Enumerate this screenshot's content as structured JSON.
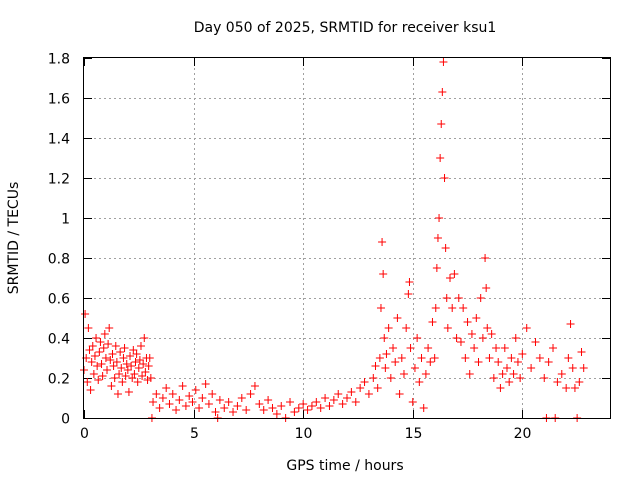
{
  "chart_data": {
    "type": "scatter",
    "title": "Day 050 of 2025, SRMTID for receiver ksu1",
    "xlabel": "GPS time / hours",
    "ylabel": "SRMTID / TECUs",
    "xlim": [
      0,
      24
    ],
    "ylim": [
      0,
      1.8
    ],
    "grid": true,
    "marker": "plus",
    "color": "#ff0000",
    "x_ticks": [
      0,
      5,
      10,
      15,
      20
    ],
    "x_tick_labels": [
      "0",
      "5",
      "10",
      "15",
      "20"
    ],
    "y_ticks": [
      0,
      0.2,
      0.4,
      0.6,
      0.8,
      1.0,
      1.2,
      1.4,
      1.6,
      1.8
    ],
    "y_tick_labels": [
      "0",
      "0.2",
      "0.4",
      "0.6",
      "0.8",
      "1",
      "1.2",
      "1.4",
      "1.6",
      "1.8"
    ],
    "series": [
      {
        "name": "ksu1",
        "points": [
          [
            0.0,
            0.24
          ],
          [
            0.05,
            0.52
          ],
          [
            0.1,
            0.3
          ],
          [
            0.15,
            0.18
          ],
          [
            0.2,
            0.45
          ],
          [
            0.25,
            0.34
          ],
          [
            0.3,
            0.14
          ],
          [
            0.35,
            0.28
          ],
          [
            0.4,
            0.36
          ],
          [
            0.45,
            0.22
          ],
          [
            0.5,
            0.31
          ],
          [
            0.55,
            0.4
          ],
          [
            0.6,
            0.26
          ],
          [
            0.65,
            0.19
          ],
          [
            0.7,
            0.33
          ],
          [
            0.75,
            0.38
          ],
          [
            0.8,
            0.27
          ],
          [
            0.85,
            0.21
          ],
          [
            0.9,
            0.35
          ],
          [
            0.95,
            0.42
          ],
          [
            1.0,
            0.3
          ],
          [
            1.05,
            0.24
          ],
          [
            1.1,
            0.37
          ],
          [
            1.15,
            0.45
          ],
          [
            1.2,
            0.29
          ],
          [
            1.25,
            0.16
          ],
          [
            1.3,
            0.32
          ],
          [
            1.35,
            0.26
          ],
          [
            1.4,
            0.2
          ],
          [
            1.45,
            0.36
          ],
          [
            1.5,
            0.28
          ],
          [
            1.55,
            0.12
          ],
          [
            1.6,
            0.22
          ],
          [
            1.65,
            0.33
          ],
          [
            1.7,
            0.25
          ],
          [
            1.75,
            0.18
          ],
          [
            1.8,
            0.3
          ],
          [
            1.85,
            0.35
          ],
          [
            1.9,
            0.21
          ],
          [
            1.95,
            0.27
          ],
          [
            2.0,
            0.24
          ],
          [
            2.05,
            0.13
          ],
          [
            2.1,
            0.31
          ],
          [
            2.15,
            0.26
          ],
          [
            2.2,
            0.2
          ],
          [
            2.25,
            0.34
          ],
          [
            2.3,
            0.22
          ],
          [
            2.35,
            0.28
          ],
          [
            2.4,
            0.32
          ],
          [
            2.45,
            0.18
          ],
          [
            2.5,
            0.25
          ],
          [
            2.55,
            0.29
          ],
          [
            2.6,
            0.36
          ],
          [
            2.65,
            0.21
          ],
          [
            2.7,
            0.27
          ],
          [
            2.75,
            0.4
          ],
          [
            2.8,
            0.23
          ],
          [
            2.85,
            0.3
          ],
          [
            2.9,
            0.19
          ],
          [
            2.95,
            0.26
          ],
          [
            3.0,
            0.3
          ],
          [
            3.05,
            0.2
          ],
          [
            3.1,
            0.0
          ],
          [
            3.15,
            0.08
          ],
          [
            3.3,
            0.12
          ],
          [
            3.45,
            0.05
          ],
          [
            3.6,
            0.1
          ],
          [
            3.75,
            0.15
          ],
          [
            3.9,
            0.07
          ],
          [
            4.05,
            0.12
          ],
          [
            4.2,
            0.04
          ],
          [
            4.35,
            0.09
          ],
          [
            4.5,
            0.16
          ],
          [
            4.65,
            0.06
          ],
          [
            4.8,
            0.11
          ],
          [
            4.95,
            0.08
          ],
          [
            5.1,
            0.14
          ],
          [
            5.25,
            0.05
          ],
          [
            5.4,
            0.1
          ],
          [
            5.55,
            0.17
          ],
          [
            5.7,
            0.07
          ],
          [
            5.85,
            0.12
          ],
          [
            6.0,
            0.03
          ],
          [
            6.1,
            0.0
          ],
          [
            6.2,
            0.09
          ],
          [
            6.4,
            0.05
          ],
          [
            6.6,
            0.08
          ],
          [
            6.8,
            0.03
          ],
          [
            7.0,
            0.06
          ],
          [
            7.2,
            0.1
          ],
          [
            7.4,
            0.04
          ],
          [
            7.6,
            0.12
          ],
          [
            7.8,
            0.16
          ],
          [
            8.0,
            0.07
          ],
          [
            8.2,
            0.04
          ],
          [
            8.4,
            0.09
          ],
          [
            8.6,
            0.05
          ],
          [
            8.8,
            0.02
          ],
          [
            9.0,
            0.06
          ],
          [
            9.2,
            0.0
          ],
          [
            9.4,
            0.08
          ],
          [
            9.6,
            0.03
          ],
          [
            9.8,
            0.05
          ],
          [
            10.0,
            0.07
          ],
          [
            10.2,
            0.04
          ],
          [
            10.4,
            0.06
          ],
          [
            10.6,
            0.08
          ],
          [
            10.8,
            0.05
          ],
          [
            11.0,
            0.1
          ],
          [
            11.2,
            0.06
          ],
          [
            11.4,
            0.09
          ],
          [
            11.6,
            0.12
          ],
          [
            11.8,
            0.07
          ],
          [
            12.0,
            0.1
          ],
          [
            12.2,
            0.13
          ],
          [
            12.4,
            0.08
          ],
          [
            12.6,
            0.15
          ],
          [
            12.8,
            0.18
          ],
          [
            13.0,
            0.12
          ],
          [
            13.2,
            0.2
          ],
          [
            13.3,
            0.26
          ],
          [
            13.4,
            0.15
          ],
          [
            13.5,
            0.3
          ],
          [
            13.55,
            0.55
          ],
          [
            13.6,
            0.88
          ],
          [
            13.65,
            0.72
          ],
          [
            13.7,
            0.4
          ],
          [
            13.75,
            0.25
          ],
          [
            13.8,
            0.32
          ],
          [
            13.9,
            0.45
          ],
          [
            14.0,
            0.2
          ],
          [
            14.1,
            0.35
          ],
          [
            14.2,
            0.28
          ],
          [
            14.3,
            0.5
          ],
          [
            14.4,
            0.12
          ],
          [
            14.5,
            0.3
          ],
          [
            14.6,
            0.22
          ],
          [
            14.7,
            0.45
          ],
          [
            14.8,
            0.62
          ],
          [
            14.85,
            0.68
          ],
          [
            14.9,
            0.35
          ],
          [
            15.0,
            0.08
          ],
          [
            15.1,
            0.25
          ],
          [
            15.2,
            0.4
          ],
          [
            15.3,
            0.18
          ],
          [
            15.4,
            0.3
          ],
          [
            15.5,
            0.05
          ],
          [
            15.6,
            0.22
          ],
          [
            15.7,
            0.35
          ],
          [
            15.8,
            0.28
          ],
          [
            15.9,
            0.48
          ],
          [
            16.0,
            0.3
          ],
          [
            16.05,
            0.55
          ],
          [
            16.1,
            0.75
          ],
          [
            16.15,
            0.9
          ],
          [
            16.2,
            1.0
          ],
          [
            16.25,
            1.3
          ],
          [
            16.3,
            1.47
          ],
          [
            16.35,
            1.63
          ],
          [
            16.4,
            1.78
          ],
          [
            16.45,
            1.2
          ],
          [
            16.5,
            0.85
          ],
          [
            16.55,
            0.6
          ],
          [
            16.6,
            0.45
          ],
          [
            16.7,
            0.7
          ],
          [
            16.8,
            0.55
          ],
          [
            16.9,
            0.72
          ],
          [
            17.0,
            0.4
          ],
          [
            17.1,
            0.6
          ],
          [
            17.2,
            0.38
          ],
          [
            17.3,
            0.55
          ],
          [
            17.4,
            0.3
          ],
          [
            17.5,
            0.48
          ],
          [
            17.6,
            0.22
          ],
          [
            17.7,
            0.42
          ],
          [
            17.8,
            0.35
          ],
          [
            17.9,
            0.5
          ],
          [
            18.0,
            0.28
          ],
          [
            18.1,
            0.6
          ],
          [
            18.2,
            0.4
          ],
          [
            18.3,
            0.8
          ],
          [
            18.35,
            0.65
          ],
          [
            18.4,
            0.45
          ],
          [
            18.5,
            0.3
          ],
          [
            18.6,
            0.42
          ],
          [
            18.7,
            0.2
          ],
          [
            18.8,
            0.35
          ],
          [
            18.9,
            0.28
          ],
          [
            19.0,
            0.15
          ],
          [
            19.1,
            0.22
          ],
          [
            19.2,
            0.35
          ],
          [
            19.3,
            0.25
          ],
          [
            19.4,
            0.18
          ],
          [
            19.5,
            0.3
          ],
          [
            19.6,
            0.22
          ],
          [
            19.7,
            0.4
          ],
          [
            19.8,
            0.28
          ],
          [
            19.9,
            0.2
          ],
          [
            20.0,
            0.32
          ],
          [
            20.2,
            0.45
          ],
          [
            20.4,
            0.25
          ],
          [
            20.6,
            0.38
          ],
          [
            20.8,
            0.3
          ],
          [
            21.0,
            0.2
          ],
          [
            21.1,
            0.0
          ],
          [
            21.2,
            0.28
          ],
          [
            21.4,
            0.35
          ],
          [
            21.5,
            0.0
          ],
          [
            21.6,
            0.18
          ],
          [
            21.8,
            0.22
          ],
          [
            22.0,
            0.15
          ],
          [
            22.1,
            0.3
          ],
          [
            22.2,
            0.47
          ],
          [
            22.3,
            0.25
          ],
          [
            22.4,
            0.15
          ],
          [
            22.5,
            0.0
          ],
          [
            22.6,
            0.18
          ],
          [
            22.7,
            0.33
          ],
          [
            22.8,
            0.25
          ]
        ]
      }
    ]
  }
}
